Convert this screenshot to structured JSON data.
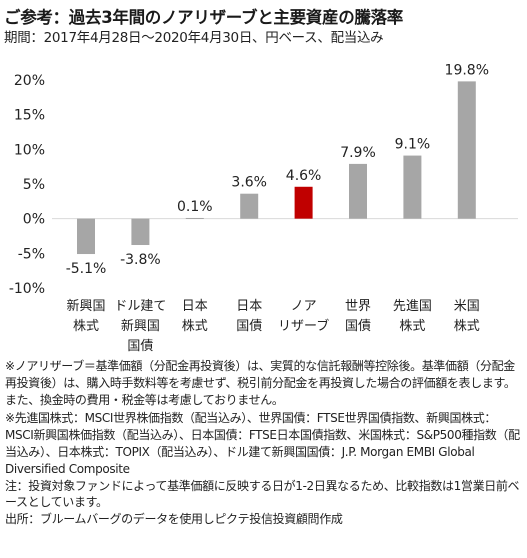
{
  "title": "ご参考：過去3年間のノアリザーブと主要資産の騰落率",
  "subtitle": "期間：2017年4月28日～2020年4月30日、円ベース、配当込み",
  "chart_data": {
    "type": "bar",
    "categories": [
      [
        "新興国",
        "株式"
      ],
      [
        "ドル建て",
        "新興国",
        "国債"
      ],
      [
        "日本",
        "株式"
      ],
      [
        "日本",
        "国債"
      ],
      [
        "ノア",
        "リザーブ"
      ],
      [
        "世界",
        "国債"
      ],
      [
        "先進国",
        "株式"
      ],
      [
        "米国",
        "株式"
      ]
    ],
    "values": [
      -5.1,
      -3.8,
      0.1,
      3.6,
      4.6,
      7.9,
      9.1,
      19.8
    ],
    "value_labels": [
      "-5.1%",
      "-3.8%",
      "0.1%",
      "3.6%",
      "4.6%",
      "7.9%",
      "9.1%",
      "19.8%"
    ],
    "highlight_index": 4,
    "ylim": [
      -10,
      20
    ],
    "yticks": [
      20,
      15,
      10,
      5,
      0,
      -5,
      -10
    ],
    "ytick_labels": [
      "20%",
      "15%",
      "10%",
      "5%",
      "0%",
      "-5%",
      "-10%"
    ],
    "grid": false,
    "colors": {
      "bar": "#a6a6a6",
      "highlight": "#c00000",
      "axis": "#d9d9d9"
    }
  },
  "notes": [
    "※ノアリザーブ＝基準価額（分配金再投資後）は、実質的な信託報酬等控除後。基準価額（分配金再投資後）は、購入時手数料等を考慮せず、税引前分配金を再投資した場合の評価額を表します。また、換金時の費用・税金等は考慮しておりません。",
    "※先進国株式：MSCI世界株価指数（配当込み）、世界国債：FTSE世界国債指数、新興国株式：MSCI新興国株価指数（配当込み）、日本国債：FTSE日本国債指数、米国株式：S&P500種指数（配当込み）、日本株式：TOPIX（配当込み）、ドル建て新興国国債：J.P. Morgan EMBI Global Diversified Composite",
    "注：投資対象ファンドによって基準価額に反映する日が1-2日異なるため、比較指数は1営業日前ベースとしています。",
    "出所：ブルームバーグのデータを使用しピクテ投信投資顧問作成"
  ]
}
